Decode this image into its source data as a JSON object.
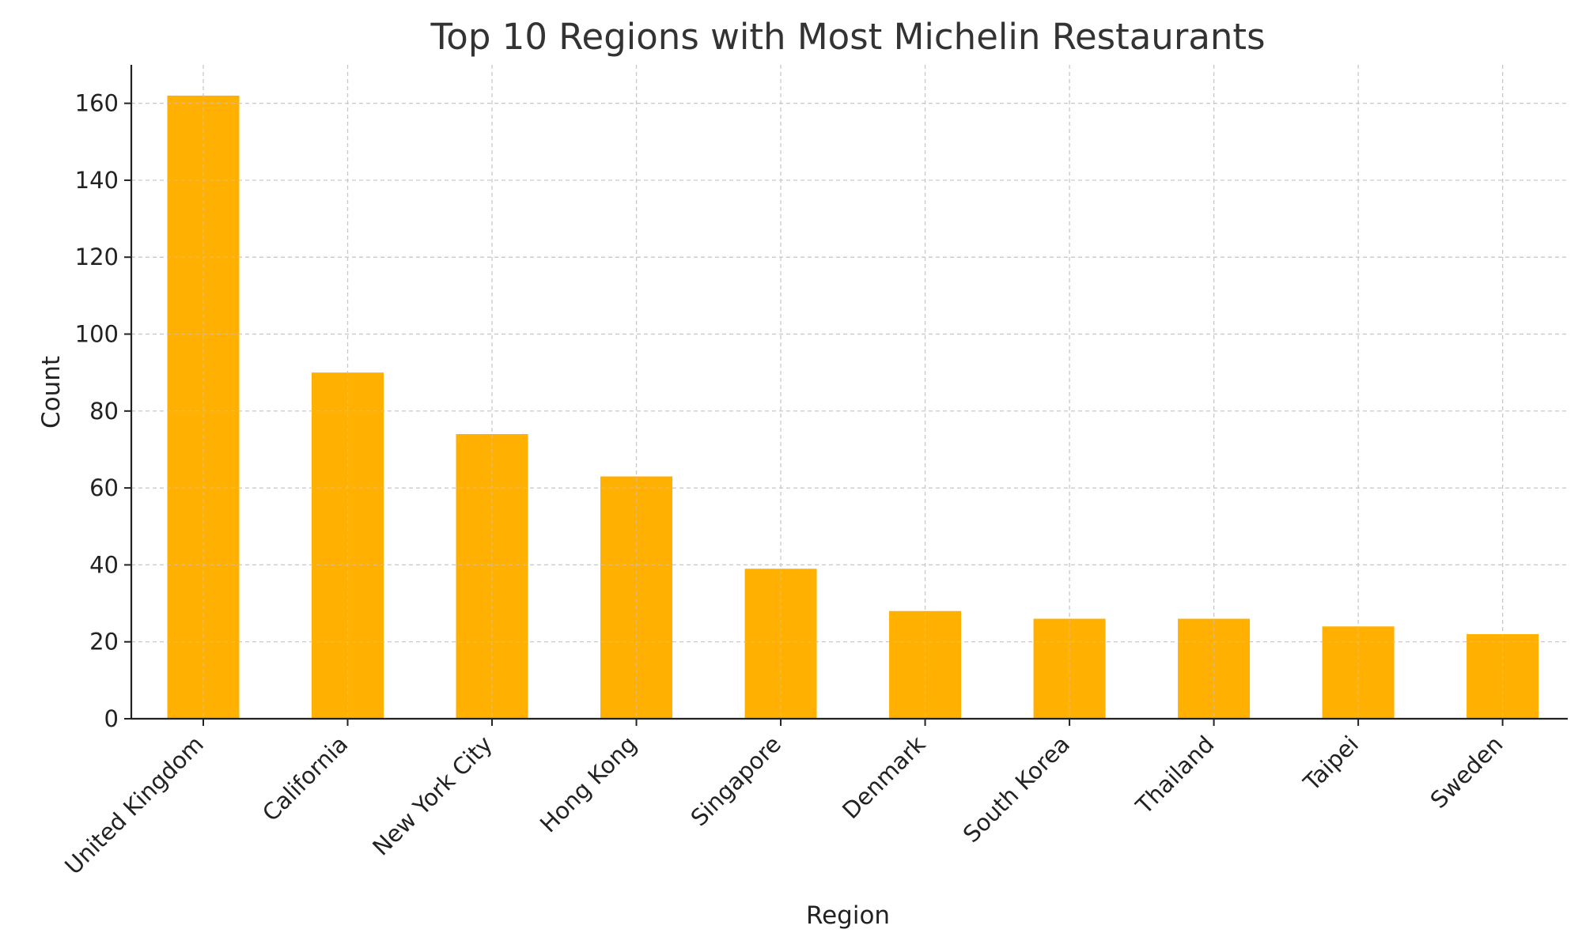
{
  "chart_data": {
    "type": "bar",
    "title": "Top 10 Regions with Most Michelin Restaurants",
    "xlabel": "Region",
    "ylabel": "Count",
    "categories": [
      "United Kingdom",
      "California",
      "New York City",
      "Hong Kong",
      "Singapore",
      "Denmark",
      "South Korea",
      "Thailand",
      "Taipei",
      "Sweden"
    ],
    "values": [
      162,
      90,
      74,
      63,
      39,
      28,
      26,
      26,
      24,
      22
    ],
    "ylim": [
      0,
      170
    ],
    "yticks": [
      0,
      20,
      40,
      60,
      80,
      100,
      120,
      140,
      160
    ],
    "grid": true,
    "bar_color": "#FFB000",
    "tick_label_rotation": "45 degrees"
  }
}
